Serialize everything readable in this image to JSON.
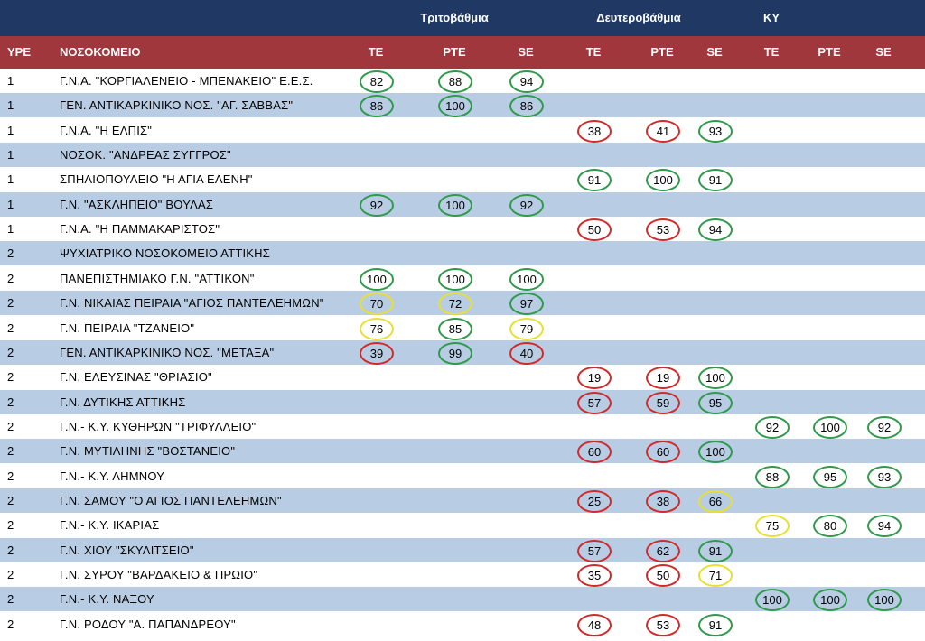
{
  "groups": {
    "tertiary": "Τριτοβάθμια",
    "secondary": "Δευτεροβάθμια",
    "ky": "ΚΥ"
  },
  "headers": {
    "ype": "ΥΡΕ",
    "hospital": "ΝΟΣΟΚΟΜΕΙΟ",
    "te": "ΤΕ",
    "pte": "ΡΤΕ",
    "se": "SE"
  },
  "colors": {
    "group_header_bg": "#1f3864",
    "column_header_bg": "#a0373d",
    "alt_row_bg": "#b8cce4",
    "green": "#2e9a4a",
    "red": "#d12a2a",
    "yellow": "#e8e030"
  },
  "rows": [
    {
      "ype": "1",
      "hospital": "Γ.Ν.Α. \"ΚΟΡΓΙΑΛΕΝΕΙΟ - ΜΠΕΝΑΚΕΙΟ\" Ε.Ε.Σ.",
      "values": [
        {
          "col": 0,
          "v": "82",
          "c": "green"
        },
        {
          "col": 1,
          "v": "88",
          "c": "green"
        },
        {
          "col": 2,
          "v": "94",
          "c": "green"
        }
      ]
    },
    {
      "ype": "1",
      "hospital": "ΓΕΝ. ΑΝΤΙΚΑΡΚΙΝΙΚΟ ΝΟΣ. \"ΑΓ. ΣΑΒΒΑΣ\"",
      "values": [
        {
          "col": 0,
          "v": "86",
          "c": "green"
        },
        {
          "col": 1,
          "v": "100",
          "c": "green"
        },
        {
          "col": 2,
          "v": "86",
          "c": "green"
        }
      ]
    },
    {
      "ype": "1",
      "hospital": "Γ.Ν.Α. \"Η ΕΛΠΙΣ\"",
      "values": [
        {
          "col": 3,
          "v": "38",
          "c": "red"
        },
        {
          "col": 4,
          "v": "41",
          "c": "red"
        },
        {
          "col": 5,
          "v": "93",
          "c": "green"
        }
      ]
    },
    {
      "ype": "1",
      "hospital": "ΝΟΣΟΚ.  \"ΑΝΔΡΕΑΣ ΣΥΓΓΡΟΣ\"",
      "values": []
    },
    {
      "ype": "1",
      "hospital": " ΣΠΗΛΙΟΠΟΥΛΕΙΟ \"Η ΑΓΙΑ ΕΛΕΝΗ\"",
      "values": [
        {
          "col": 3,
          "v": "91",
          "c": "green"
        },
        {
          "col": 4,
          "v": "100",
          "c": "green"
        },
        {
          "col": 5,
          "v": "91",
          "c": "green"
        }
      ]
    },
    {
      "ype": "1",
      "hospital": "Γ.Ν. \"ΑΣΚΛΗΠΕΙΟ\" ΒΟΥΛΑΣ",
      "values": [
        {
          "col": 0,
          "v": "92",
          "c": "green"
        },
        {
          "col": 1,
          "v": "100",
          "c": "green"
        },
        {
          "col": 2,
          "v": "92",
          "c": "green"
        }
      ]
    },
    {
      "ype": "1",
      "hospital": "Γ.Ν.Α. \"Η ΠΑΜΜΑΚΑΡΙΣΤΟΣ\"",
      "values": [
        {
          "col": 3,
          "v": "50",
          "c": "red"
        },
        {
          "col": 4,
          "v": "53",
          "c": "red"
        },
        {
          "col": 5,
          "v": "94",
          "c": "green"
        }
      ]
    },
    {
      "ype": "2",
      "hospital": "ΨΥΧΙΑΤΡΙΚΟ ΝΟΣΟΚΟΜΕΙΟ ΑΤΤΙΚΗΣ",
      "values": []
    },
    {
      "ype": "2",
      "hospital": "ΠΑΝΕΠΙΣΤΗΜΙΑΚΟ Γ.Ν. \"ΑΤΤΙΚΟΝ\"",
      "values": [
        {
          "col": 0,
          "v": "100",
          "c": "green"
        },
        {
          "col": 1,
          "v": "100",
          "c": "green"
        },
        {
          "col": 2,
          "v": "100",
          "c": "green"
        }
      ]
    },
    {
      "ype": "2",
      "hospital": "Γ.Ν. ΝΙΚΑΙΑΣ ΠΕΙΡΑΙΑ \"ΑΓΙΟΣ ΠΑΝΤΕΛΕΗΜΩΝ\"",
      "values": [
        {
          "col": 0,
          "v": "70",
          "c": "yellow"
        },
        {
          "col": 1,
          "v": "72",
          "c": "yellow"
        },
        {
          "col": 2,
          "v": "97",
          "c": "green"
        }
      ]
    },
    {
      "ype": "2",
      "hospital": "Γ.Ν. ΠΕΙΡΑΙΑ \"ΤΖΑΝΕΙΟ\"",
      "values": [
        {
          "col": 0,
          "v": "76",
          "c": "yellow"
        },
        {
          "col": 1,
          "v": "85",
          "c": "green"
        },
        {
          "col": 2,
          "v": "79",
          "c": "yellow"
        }
      ]
    },
    {
      "ype": "2",
      "hospital": "ΓΕΝ. ΑΝΤΙΚΑΡΚΙΝΙΚΟ ΝΟΣ. \"ΜΕΤΑΞΑ\"",
      "values": [
        {
          "col": 0,
          "v": "39",
          "c": "red"
        },
        {
          "col": 1,
          "v": "99",
          "c": "green"
        },
        {
          "col": 2,
          "v": "40",
          "c": "red"
        }
      ]
    },
    {
      "ype": "2",
      "hospital": "Γ.Ν. ΕΛΕΥΣΙΝΑΣ \"ΘΡΙΑΣΙΟ\"",
      "values": [
        {
          "col": 3,
          "v": "19",
          "c": "red"
        },
        {
          "col": 4,
          "v": "19",
          "c": "red"
        },
        {
          "col": 5,
          "v": "100",
          "c": "green"
        }
      ]
    },
    {
      "ype": "2",
      "hospital": "Γ.Ν. ΔΥΤΙΚΗΣ ΑΤΤΙΚΗΣ",
      "values": [
        {
          "col": 3,
          "v": "57",
          "c": "red"
        },
        {
          "col": 4,
          "v": "59",
          "c": "red"
        },
        {
          "col": 5,
          "v": "95",
          "c": "green"
        }
      ]
    },
    {
      "ype": "2",
      "hospital": "Γ.Ν.- Κ.Υ. ΚΥΘΗΡΩΝ \"ΤΡΙΦΥΛΛΕΙΟ\"",
      "values": [
        {
          "col": 6,
          "v": "92",
          "c": "green"
        },
        {
          "col": 7,
          "v": "100",
          "c": "green"
        },
        {
          "col": 8,
          "v": "92",
          "c": "green"
        }
      ]
    },
    {
      "ype": "2",
      "hospital": "Γ.Ν. ΜΥΤΙΛΗΝΗΣ \"ΒΟΣΤΑΝΕΙΟ\"",
      "values": [
        {
          "col": 3,
          "v": "60",
          "c": "red"
        },
        {
          "col": 4,
          "v": "60",
          "c": "red"
        },
        {
          "col": 5,
          "v": "100",
          "c": "green"
        }
      ]
    },
    {
      "ype": "2",
      "hospital": "Γ.Ν.- Κ.Υ. ΛΗΜΝΟΥ",
      "values": [
        {
          "col": 6,
          "v": "88",
          "c": "green"
        },
        {
          "col": 7,
          "v": "95",
          "c": "green"
        },
        {
          "col": 8,
          "v": "93",
          "c": "green"
        }
      ]
    },
    {
      "ype": "2",
      "hospital": "Γ.Ν. ΣΑΜΟΥ \"Ο ΑΓΙΟΣ ΠΑΝΤΕΛΕΗΜΩΝ\"",
      "values": [
        {
          "col": 3,
          "v": "25",
          "c": "red"
        },
        {
          "col": 4,
          "v": "38",
          "c": "red"
        },
        {
          "col": 5,
          "v": "66",
          "c": "yellow"
        }
      ]
    },
    {
      "ype": "2",
      "hospital": "Γ.Ν.- Κ.Υ. ΙΚΑΡΙΑΣ",
      "values": [
        {
          "col": 6,
          "v": "75",
          "c": "yellow"
        },
        {
          "col": 7,
          "v": "80",
          "c": "green"
        },
        {
          "col": 8,
          "v": "94",
          "c": "green"
        }
      ]
    },
    {
      "ype": "2",
      "hospital": "Γ.Ν. ΧΙΟΥ \"ΣΚΥΛΙΤΣΕΙΟ\"",
      "values": [
        {
          "col": 3,
          "v": "57",
          "c": "red"
        },
        {
          "col": 4,
          "v": "62",
          "c": "red"
        },
        {
          "col": 5,
          "v": "91",
          "c": "green"
        }
      ]
    },
    {
      "ype": "2",
      "hospital": "Γ.Ν. ΣΥΡΟΥ \"ΒΑΡΔΑΚΕΙΟ & ΠΡΩΙΟ\"",
      "values": [
        {
          "col": 3,
          "v": "35",
          "c": "red"
        },
        {
          "col": 4,
          "v": "50",
          "c": "red"
        },
        {
          "col": 5,
          "v": "71",
          "c": "yellow"
        }
      ]
    },
    {
      "ype": "2",
      "hospital": "Γ.Ν.- Κ.Υ. ΝΑΞΟΥ",
      "values": [
        {
          "col": 6,
          "v": "100",
          "c": "green"
        },
        {
          "col": 7,
          "v": "100",
          "c": "green"
        },
        {
          "col": 8,
          "v": "100",
          "c": "green"
        }
      ]
    },
    {
      "ype": "2",
      "hospital": "Γ.Ν. ΡΟΔΟΥ \"Α. ΠΑΠΑΝΔΡΕΟΥ\"",
      "values": [
        {
          "col": 3,
          "v": "48",
          "c": "red"
        },
        {
          "col": 4,
          "v": "53",
          "c": "red"
        },
        {
          "col": 5,
          "v": "91",
          "c": "green"
        }
      ]
    }
  ]
}
